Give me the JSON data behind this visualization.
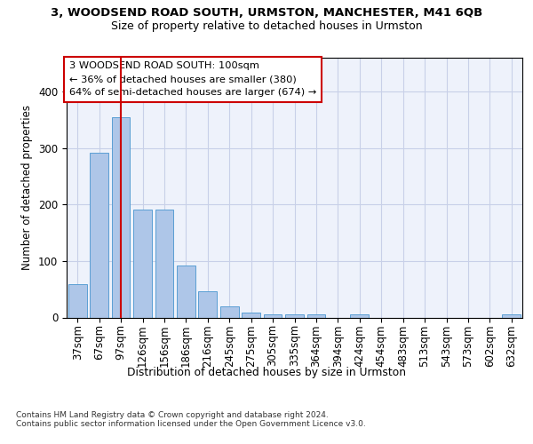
{
  "title_main": "3, WOODSEND ROAD SOUTH, URMSTON, MANCHESTER, M41 6QB",
  "title_sub": "Size of property relative to detached houses in Urmston",
  "xlabel": "Distribution of detached houses by size in Urmston",
  "ylabel": "Number of detached properties",
  "bar_color": "#aec6e8",
  "bar_edge_color": "#5a9fd4",
  "categories": [
    "37sqm",
    "67sqm",
    "97sqm",
    "126sqm",
    "156sqm",
    "186sqm",
    "216sqm",
    "245sqm",
    "275sqm",
    "305sqm",
    "335sqm",
    "364sqm",
    "394sqm",
    "424sqm",
    "454sqm",
    "483sqm",
    "513sqm",
    "543sqm",
    "573sqm",
    "602sqm",
    "632sqm"
  ],
  "values": [
    59,
    291,
    355,
    191,
    191,
    92,
    46,
    20,
    9,
    5,
    5,
    5,
    0,
    5,
    0,
    0,
    0,
    0,
    0,
    0,
    5
  ],
  "property_bar_index": 2,
  "annotation_text": "3 WOODSEND ROAD SOUTH: 100sqm\n← 36% of detached houses are smaller (380)\n64% of semi-detached houses are larger (674) →",
  "vline_color": "#cc0000",
  "annotation_box_color": "#ffffff",
  "annotation_box_edge": "#cc0000",
  "footnote": "Contains HM Land Registry data © Crown copyright and database right 2024.\nContains public sector information licensed under the Open Government Licence v3.0.",
  "ylim": [
    0,
    460
  ],
  "background_color": "#eef2fb",
  "grid_color": "#c8d0e8"
}
